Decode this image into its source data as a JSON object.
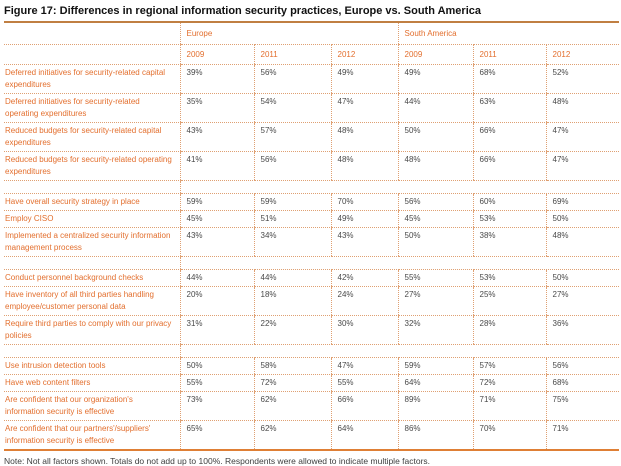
{
  "title": "Figure 17: Differences in regional information security practices, Europe vs. South America",
  "note": "Note: Not all factors shown. Totals do not add up to 100%. Respondents were allowed to indicate multiple factors.",
  "colors": {
    "background": "#ffffff",
    "title_text": "#111111",
    "accent_text": "#e36f2e",
    "value_text": "#4a4a4a",
    "dotted_border": "#dfa072",
    "rule_top": "#c07f42",
    "rule_bottom": "#df7f35",
    "note_text": "#3e3e3e"
  },
  "table": {
    "groups": [
      {
        "label": "Europe",
        "years": [
          "2009",
          "2011",
          "2012"
        ]
      },
      {
        "label": "South America",
        "years": [
          "2009",
          "2011",
          "2012"
        ]
      }
    ],
    "sections": [
      {
        "rows": [
          {
            "label": "Deferred initiatives for security-related capital expenditures",
            "values": [
              "39%",
              "56%",
              "49%",
              "49%",
              "68%",
              "52%"
            ]
          },
          {
            "label": "Deferred initiatives for security-related operating expenditures",
            "values": [
              "35%",
              "54%",
              "47%",
              "44%",
              "63%",
              "48%"
            ]
          },
          {
            "label": "Reduced budgets for security-related capital expenditures",
            "values": [
              "43%",
              "57%",
              "48%",
              "50%",
              "66%",
              "47%"
            ]
          },
          {
            "label": "Reduced budgets for security-related operating expenditures",
            "values": [
              "41%",
              "56%",
              "48%",
              "48%",
              "66%",
              "47%"
            ]
          }
        ]
      },
      {
        "rows": [
          {
            "label": "Have overall security strategy in place",
            "values": [
              "59%",
              "59%",
              "70%",
              "56%",
              "60%",
              "69%"
            ]
          },
          {
            "label": "Employ CISO",
            "values": [
              "45%",
              "51%",
              "49%",
              "45%",
              "53%",
              "50%"
            ]
          },
          {
            "label": "Implemented a centralized security information management process",
            "values": [
              "43%",
              "34%",
              "43%",
              "50%",
              "38%",
              "48%"
            ]
          }
        ]
      },
      {
        "rows": [
          {
            "label": "Conduct personnel background checks",
            "values": [
              "44%",
              "44%",
              "42%",
              "55%",
              "53%",
              "50%"
            ]
          },
          {
            "label": "Have inventory of all third parties handling employee/customer personal data",
            "values": [
              "20%",
              "18%",
              "24%",
              "27%",
              "25%",
              "27%"
            ]
          },
          {
            "label": "Require third parties to comply with our privacy policies",
            "values": [
              "31%",
              "22%",
              "30%",
              "32%",
              "28%",
              "36%"
            ]
          }
        ]
      },
      {
        "rows": [
          {
            "label": "Use intrusion detection tools",
            "values": [
              "50%",
              "58%",
              "47%",
              "59%",
              "57%",
              "56%"
            ]
          },
          {
            "label": "Have web content filters",
            "values": [
              "55%",
              "72%",
              "55%",
              "64%",
              "72%",
              "68%"
            ]
          },
          {
            "label": "Are confident that our organization's information security is effective",
            "values": [
              "73%",
              "62%",
              "66%",
              "89%",
              "71%",
              "75%"
            ]
          },
          {
            "label": "Are confident that our partners'/suppliers' information security is effective",
            "values": [
              "65%",
              "62%",
              "64%",
              "86%",
              "70%",
              "71%"
            ]
          }
        ]
      }
    ]
  }
}
